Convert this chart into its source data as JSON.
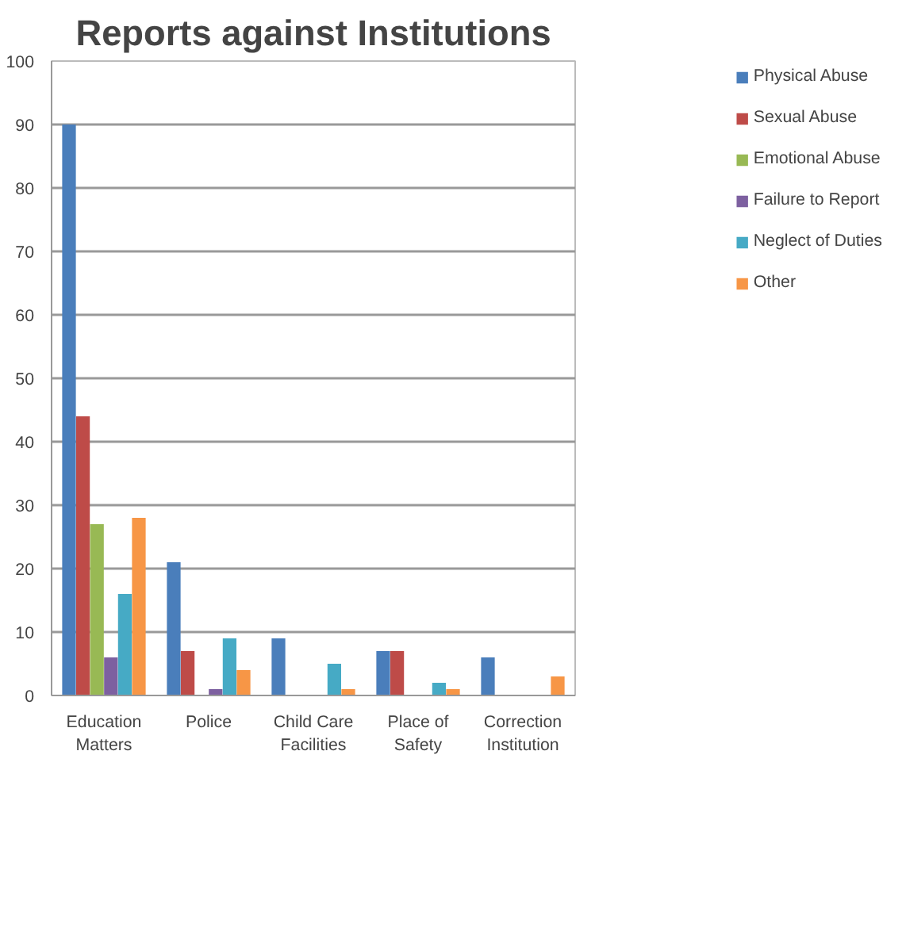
{
  "chart_data": {
    "type": "bar",
    "title": "Reports against Institutions",
    "categories": [
      "Education Matters",
      "Police",
      "Child Care Facilities",
      "Place of Safety",
      "Correction Institution"
    ],
    "series": [
      {
        "name": "Physical Abuse",
        "color": "#4a7ebb",
        "values": [
          90,
          21,
          9,
          7,
          6
        ]
      },
      {
        "name": "Sexual Abuse",
        "color": "#be4b48",
        "values": [
          44,
          7,
          0,
          7,
          0
        ]
      },
      {
        "name": "Emotional Abuse",
        "color": "#98b954",
        "values": [
          27,
          0,
          0,
          0,
          0
        ]
      },
      {
        "name": "Failure to Report",
        "color": "#7d60a0",
        "values": [
          6,
          1,
          0,
          0,
          0
        ]
      },
      {
        "name": "Neglect of Duties",
        "color": "#46aac5",
        "values": [
          16,
          9,
          5,
          2,
          0
        ]
      },
      {
        "name": "Other",
        "color": "#f79646",
        "values": [
          28,
          4,
          1,
          1,
          3
        ]
      }
    ],
    "ylim": [
      0,
      100
    ],
    "yticks": [
      0,
      10,
      20,
      30,
      40,
      50,
      60,
      70,
      80,
      90,
      100
    ],
    "grid": "y",
    "legend": "right"
  }
}
